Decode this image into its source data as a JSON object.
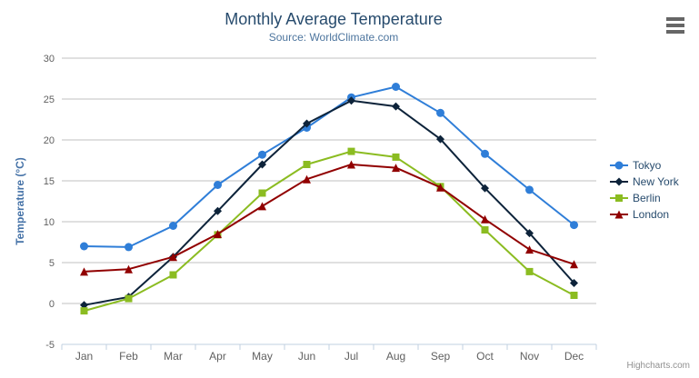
{
  "chart_data": {
    "type": "line",
    "title": "Monthly Average Temperature",
    "subtitle": "Source: WorldClimate.com",
    "xlabel": "",
    "ylabel": "Temperature (°C)",
    "categories": [
      "Jan",
      "Feb",
      "Mar",
      "Apr",
      "May",
      "Jun",
      "Jul",
      "Aug",
      "Sep",
      "Oct",
      "Nov",
      "Dec"
    ],
    "ylim": [
      -5,
      30
    ],
    "ytick_interval": 5,
    "ytick_labels": [
      "30",
      "25",
      "20",
      "15",
      "10",
      "5",
      "0",
      "-5"
    ],
    "grid": true,
    "legend_position": "right",
    "series": [
      {
        "name": "Tokyo",
        "color": "#2f7ed8",
        "marker": "circle",
        "values": [
          7.0,
          6.9,
          9.5,
          14.5,
          18.2,
          21.5,
          25.2,
          26.5,
          23.3,
          18.3,
          13.9,
          9.6
        ]
      },
      {
        "name": "New York",
        "color": "#0d233a",
        "marker": "diamond",
        "values": [
          -0.2,
          0.8,
          5.7,
          11.3,
          17.0,
          22.0,
          24.8,
          24.1,
          20.1,
          14.1,
          8.6,
          2.5
        ]
      },
      {
        "name": "Berlin",
        "color": "#8bbc21",
        "marker": "square",
        "values": [
          -0.9,
          0.6,
          3.5,
          8.4,
          13.5,
          17.0,
          18.6,
          17.9,
          14.3,
          9.0,
          3.9,
          1.0
        ]
      },
      {
        "name": "London",
        "color": "#910000",
        "marker": "triangle",
        "values": [
          3.9,
          4.2,
          5.7,
          8.5,
          11.9,
          15.2,
          17.0,
          16.6,
          14.2,
          10.3,
          6.6,
          4.8
        ]
      }
    ]
  },
  "credits": {
    "label": "Highcharts.com"
  },
  "export_menu": {
    "icon": "hamburger-menu-icon"
  },
  "styles": {
    "title_color": "#274b6d",
    "subtitle_color": "#4d759e",
    "axis_title_color": "#4572A7",
    "tick_label_color": "#606060",
    "grid_color": "#C0C0C0",
    "axis_line_color": "#C0D0E0",
    "legend_text_color": "#274b6d",
    "credits_color": "#909090",
    "menu_icon_color": "#666666",
    "background": "#FFFFFF"
  }
}
